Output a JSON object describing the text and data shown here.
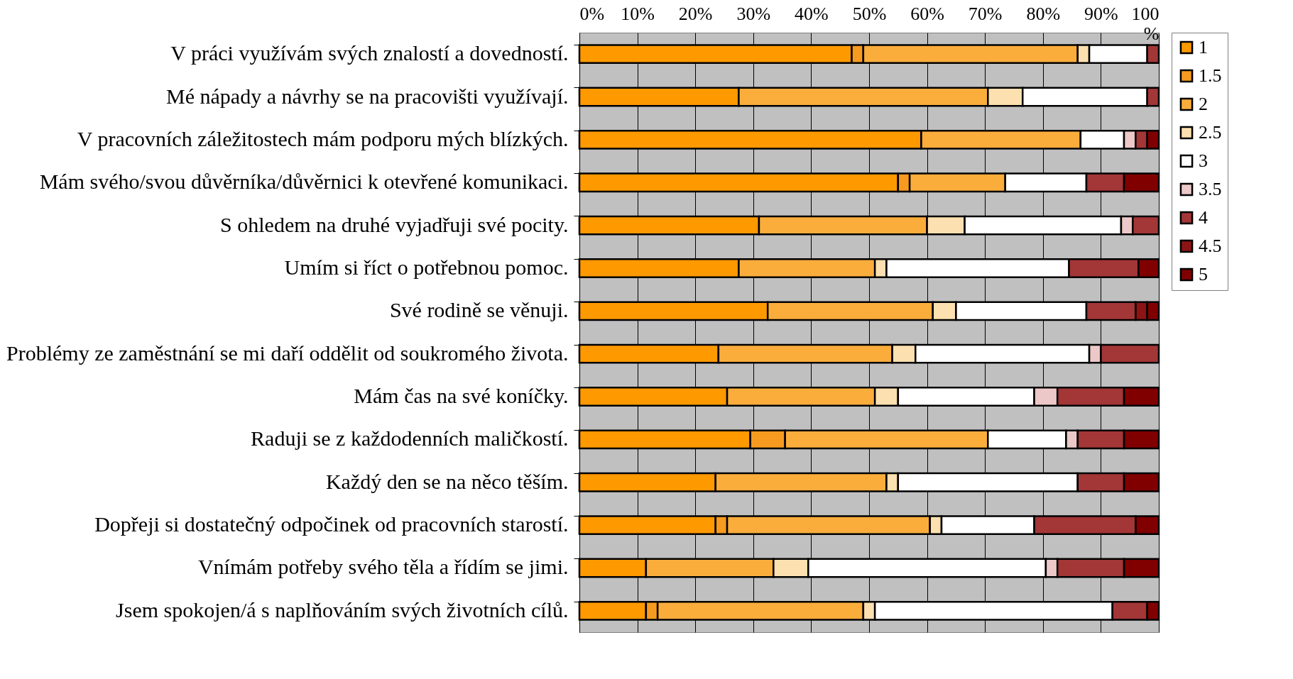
{
  "chart_data": {
    "type": "bar",
    "orientation": "horizontal",
    "stacked": true,
    "categories": [
      "V práci využívám svých znalostí a dovedností.",
      "Mé nápady a návrhy se na pracovišti využívají.",
      "V pracovních záležitostech mám podporu mých blízkých.",
      "Mám svého/svou důvěrníka/důvěrnici k otevřené komunikaci.",
      "S ohledem na druhé vyjadřuji své pocity.",
      "Umím si říct o potřebnou pomoc.",
      "Své rodině se věnuji.",
      "Problémy ze zaměstnání se mi daří oddělit od soukromého života.",
      "Mám čas na své koníčky.",
      "Raduji se z každodenních maličkostí.",
      "Každý den se na něco těším.",
      "Dopřeji si dostatečný odpočinek od pracovních starostí.",
      "Vnímám potřeby svého těla a řídím se jimi.",
      "Jsem spokojen/á s naplňováním svých životních cílů."
    ],
    "series": [
      {
        "name": "1",
        "color": "#ff9900",
        "values": [
          47,
          27.5,
          59,
          55,
          31,
          27.5,
          32.5,
          24,
          25.5,
          29.5,
          23.5,
          23.5,
          11.5,
          11.5
        ]
      },
      {
        "name": "1.5",
        "color": "#f79a20",
        "values": [
          2,
          0,
          0,
          2,
          0,
          0,
          0,
          0,
          0,
          6,
          0,
          2,
          0,
          2
        ]
      },
      {
        "name": "2",
        "color": "#fbad3c",
        "values": [
          37,
          43,
          27.5,
          16.5,
          29,
          23.5,
          28.5,
          30,
          25.5,
          35,
          29.5,
          35,
          22,
          35.5
        ]
      },
      {
        "name": "2.5",
        "color": "#fde0b0",
        "values": [
          2,
          6,
          0,
          0,
          6.5,
          2,
          4,
          4,
          4,
          0,
          2,
          2,
          6,
          2
        ]
      },
      {
        "name": "3",
        "color": "#ffffff",
        "values": [
          10,
          21.5,
          7.5,
          14,
          27,
          31.5,
          22.5,
          30,
          23.5,
          13.5,
          31,
          16,
          41,
          41
        ]
      },
      {
        "name": "3.5",
        "color": "#ecc8c8",
        "values": [
          0,
          0,
          2,
          0,
          2,
          0,
          0,
          2,
          4,
          2,
          0,
          0,
          2,
          0
        ]
      },
      {
        "name": "4",
        "color": "#a33636",
        "values": [
          2,
          2,
          2,
          6.5,
          4.5,
          12,
          8.5,
          10,
          11.5,
          8,
          8,
          17.5,
          11.5,
          6
        ]
      },
      {
        "name": "4.5",
        "color": "#8c1414",
        "values": [
          0,
          0,
          0,
          0,
          0,
          0,
          2,
          0,
          0,
          0,
          0,
          0,
          0,
          0
        ]
      },
      {
        "name": "5",
        "color": "#800000",
        "values": [
          0,
          0,
          2,
          6,
          0,
          3.5,
          2,
          0,
          6,
          6,
          6,
          4,
          6,
          2
        ]
      }
    ],
    "xlim": [
      0,
      100
    ],
    "xticks": [
      {
        "value": 0,
        "label": "0%"
      },
      {
        "value": 10,
        "label": "10%"
      },
      {
        "value": 20,
        "label": "20%"
      },
      {
        "value": 30,
        "label": "30%"
      },
      {
        "value": 40,
        "label": "40%"
      },
      {
        "value": 50,
        "label": "50%"
      },
      {
        "value": 60,
        "label": "60%"
      },
      {
        "value": 70,
        "label": "70%"
      },
      {
        "value": 80,
        "label": "80%"
      },
      {
        "value": 90,
        "label": "90%"
      },
      {
        "value": 100,
        "label": "100 %"
      }
    ],
    "grid": "x",
    "legend": "right"
  }
}
